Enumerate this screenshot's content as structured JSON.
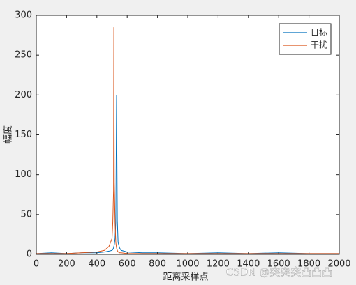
{
  "chart_data": {
    "type": "line",
    "x_label": "距离采样点",
    "y_label": "幅度",
    "x": [
      0,
      100,
      200,
      300,
      400,
      450,
      480,
      500,
      505,
      510,
      512,
      515,
      520,
      525,
      530,
      535,
      540,
      550,
      560,
      600,
      700,
      800,
      1000,
      1200,
      1400,
      1600,
      1800,
      2000
    ],
    "series": [
      {
        "name": "目标",
        "color": "#0072bd",
        "values": [
          1,
          2,
          1,
          2,
          2,
          3,
          4,
          5,
          6,
          8,
          10,
          12,
          20,
          40,
          200,
          42,
          15,
          8,
          5,
          3,
          2,
          2,
          1,
          2,
          1,
          2,
          1,
          1
        ]
      },
      {
        "name": "干扰",
        "color": "#d95319",
        "values": [
          1,
          1,
          1,
          2,
          3,
          5,
          10,
          20,
          40,
          80,
          285,
          90,
          40,
          15,
          8,
          5,
          3,
          2,
          2,
          1,
          1,
          1,
          1,
          1,
          1,
          1,
          1,
          1
        ]
      }
    ],
    "xlim": [
      0,
      2000
    ],
    "xticks": [
      0,
      200,
      400,
      600,
      800,
      1000,
      1200,
      1400,
      1600,
      1800,
      2000
    ],
    "ylim": [
      0,
      300
    ],
    "yticks": [
      0,
      50,
      100,
      150,
      200,
      250,
      300
    ],
    "legend": "upper right",
    "watermark": "CSDN @突突突凸凸凸"
  }
}
